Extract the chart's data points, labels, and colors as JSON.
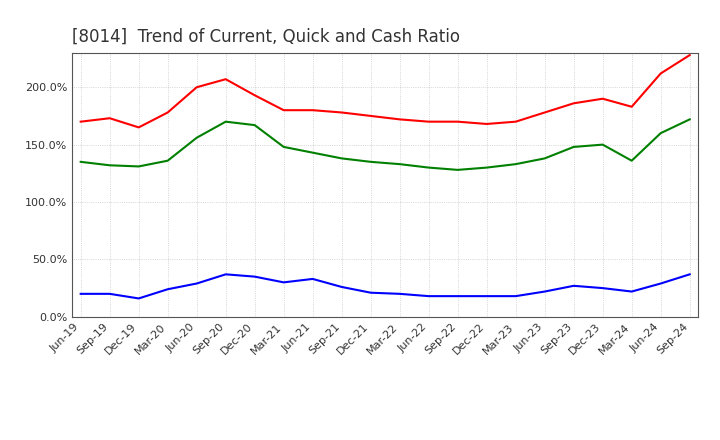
{
  "title": "[8014]  Trend of Current, Quick and Cash Ratio",
  "x_labels": [
    "Jun-19",
    "Sep-19",
    "Dec-19",
    "Mar-20",
    "Jun-20",
    "Sep-20",
    "Dec-20",
    "Mar-21",
    "Jun-21",
    "Sep-21",
    "Dec-21",
    "Mar-22",
    "Jun-22",
    "Sep-22",
    "Dec-22",
    "Mar-23",
    "Jun-23",
    "Sep-23",
    "Dec-23",
    "Mar-24",
    "Jun-24",
    "Sep-24"
  ],
  "current_ratio": [
    170,
    173,
    165,
    178,
    200,
    207,
    193,
    180,
    180,
    178,
    175,
    172,
    170,
    170,
    168,
    170,
    178,
    186,
    190,
    183,
    212,
    228
  ],
  "quick_ratio": [
    135,
    132,
    131,
    136,
    156,
    170,
    167,
    148,
    143,
    138,
    135,
    133,
    130,
    128,
    130,
    133,
    138,
    148,
    150,
    136,
    160,
    172
  ],
  "cash_ratio": [
    20,
    20,
    16,
    24,
    29,
    37,
    35,
    30,
    33,
    26,
    21,
    20,
    18,
    18,
    18,
    18,
    22,
    27,
    25,
    22,
    29,
    37
  ],
  "current_color": "#ff0000",
  "quick_color": "#008000",
  "cash_color": "#0000ff",
  "ylim": [
    0,
    230
  ],
  "yticks": [
    0,
    50,
    100,
    150,
    200
  ],
  "background_color": "#ffffff",
  "grid_color": "#aaaaaa",
  "title_fontsize": 12,
  "tick_fontsize": 8,
  "legend_fontsize": 9
}
